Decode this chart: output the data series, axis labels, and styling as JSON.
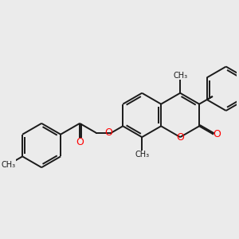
{
  "background_color": "#ebebeb",
  "bond_color": "#1a1a1a",
  "oxygen_color": "#ff0000",
  "bond_lw": 1.4,
  "dbo": 0.055,
  "figsize": [
    3.0,
    3.0
  ],
  "dpi": 100,
  "xlim": [
    -4.5,
    5.5
  ],
  "ylim": [
    -2.8,
    2.8
  ]
}
